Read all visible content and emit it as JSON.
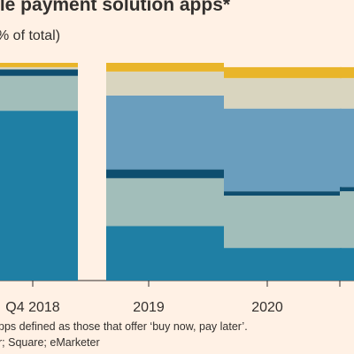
{
  "header": {
    "title": "ile payment solution apps*",
    "subtitle": "% of total)"
  },
  "footer": {
    "footnote": "pps defined as those that offer ‘buy now, pay later’.",
    "source": "r; Square; eMarketer"
  },
  "colors": {
    "background": "#FFF1E5",
    "segments": [
      "#1F7FA4",
      "#A2BEBA",
      "#0E4E6F",
      "#6A9EBE",
      "#D9D5BF",
      "#E9B52A"
    ]
  },
  "chart_data": {
    "type": "bar",
    "stacked": true,
    "categories": [
      "Q4 2018",
      "2019",
      "2020",
      ""
    ],
    "ylim": [
      0,
      100
    ],
    "series": [
      {
        "values": [
          78,
          25,
          15,
          15
        ]
      },
      {
        "values": [
          16,
          22,
          24,
          26
        ]
      },
      {
        "values": [
          3,
          4,
          2,
          2
        ]
      },
      {
        "values": [
          0,
          34,
          38,
          36
        ]
      },
      {
        "values": [
          1,
          11,
          14,
          14
        ]
      },
      {
        "values": [
          2,
          4,
          5,
          5
        ]
      }
    ]
  }
}
